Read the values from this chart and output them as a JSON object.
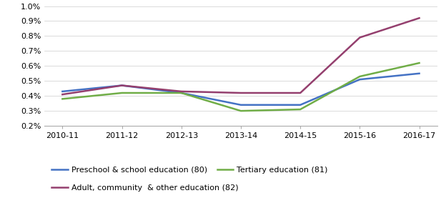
{
  "x_labels": [
    "2010-11",
    "2011-12",
    "2012-13",
    "2013-14",
    "2014-15",
    "2015-16",
    "2016-17"
  ],
  "x_values": [
    0,
    1,
    2,
    3,
    4,
    5,
    6
  ],
  "series": [
    {
      "label": "Preschool & school education (80)",
      "color": "#4472C4",
      "values": [
        0.0043,
        0.0047,
        0.0042,
        0.0034,
        0.0034,
        0.0051,
        0.0055
      ]
    },
    {
      "label": "Tertiary education (81)",
      "color": "#70AD47",
      "values": [
        0.0038,
        0.0042,
        0.0042,
        0.003,
        0.0031,
        0.0053,
        0.0062
      ]
    },
    {
      "label": "Adult, community  & other education (82)",
      "color": "#943f6e",
      "values": [
        0.0041,
        0.0047,
        0.0043,
        0.0042,
        0.0042,
        0.0079,
        0.0092
      ]
    }
  ],
  "ylim": [
    0.002,
    0.01
  ],
  "yticks": [
    0.002,
    0.003,
    0.004,
    0.005,
    0.006,
    0.007,
    0.008,
    0.009,
    0.01
  ],
  "ytick_labels": [
    "0.2%",
    "0.3%",
    "0.4%",
    "0.5%",
    "0.6%",
    "0.7%",
    "0.8%",
    "0.9%",
    "1.0%"
  ],
  "background_color": "#ffffff",
  "line_width": 1.8,
  "tick_fontsize": 8,
  "legend_fontsize": 8
}
